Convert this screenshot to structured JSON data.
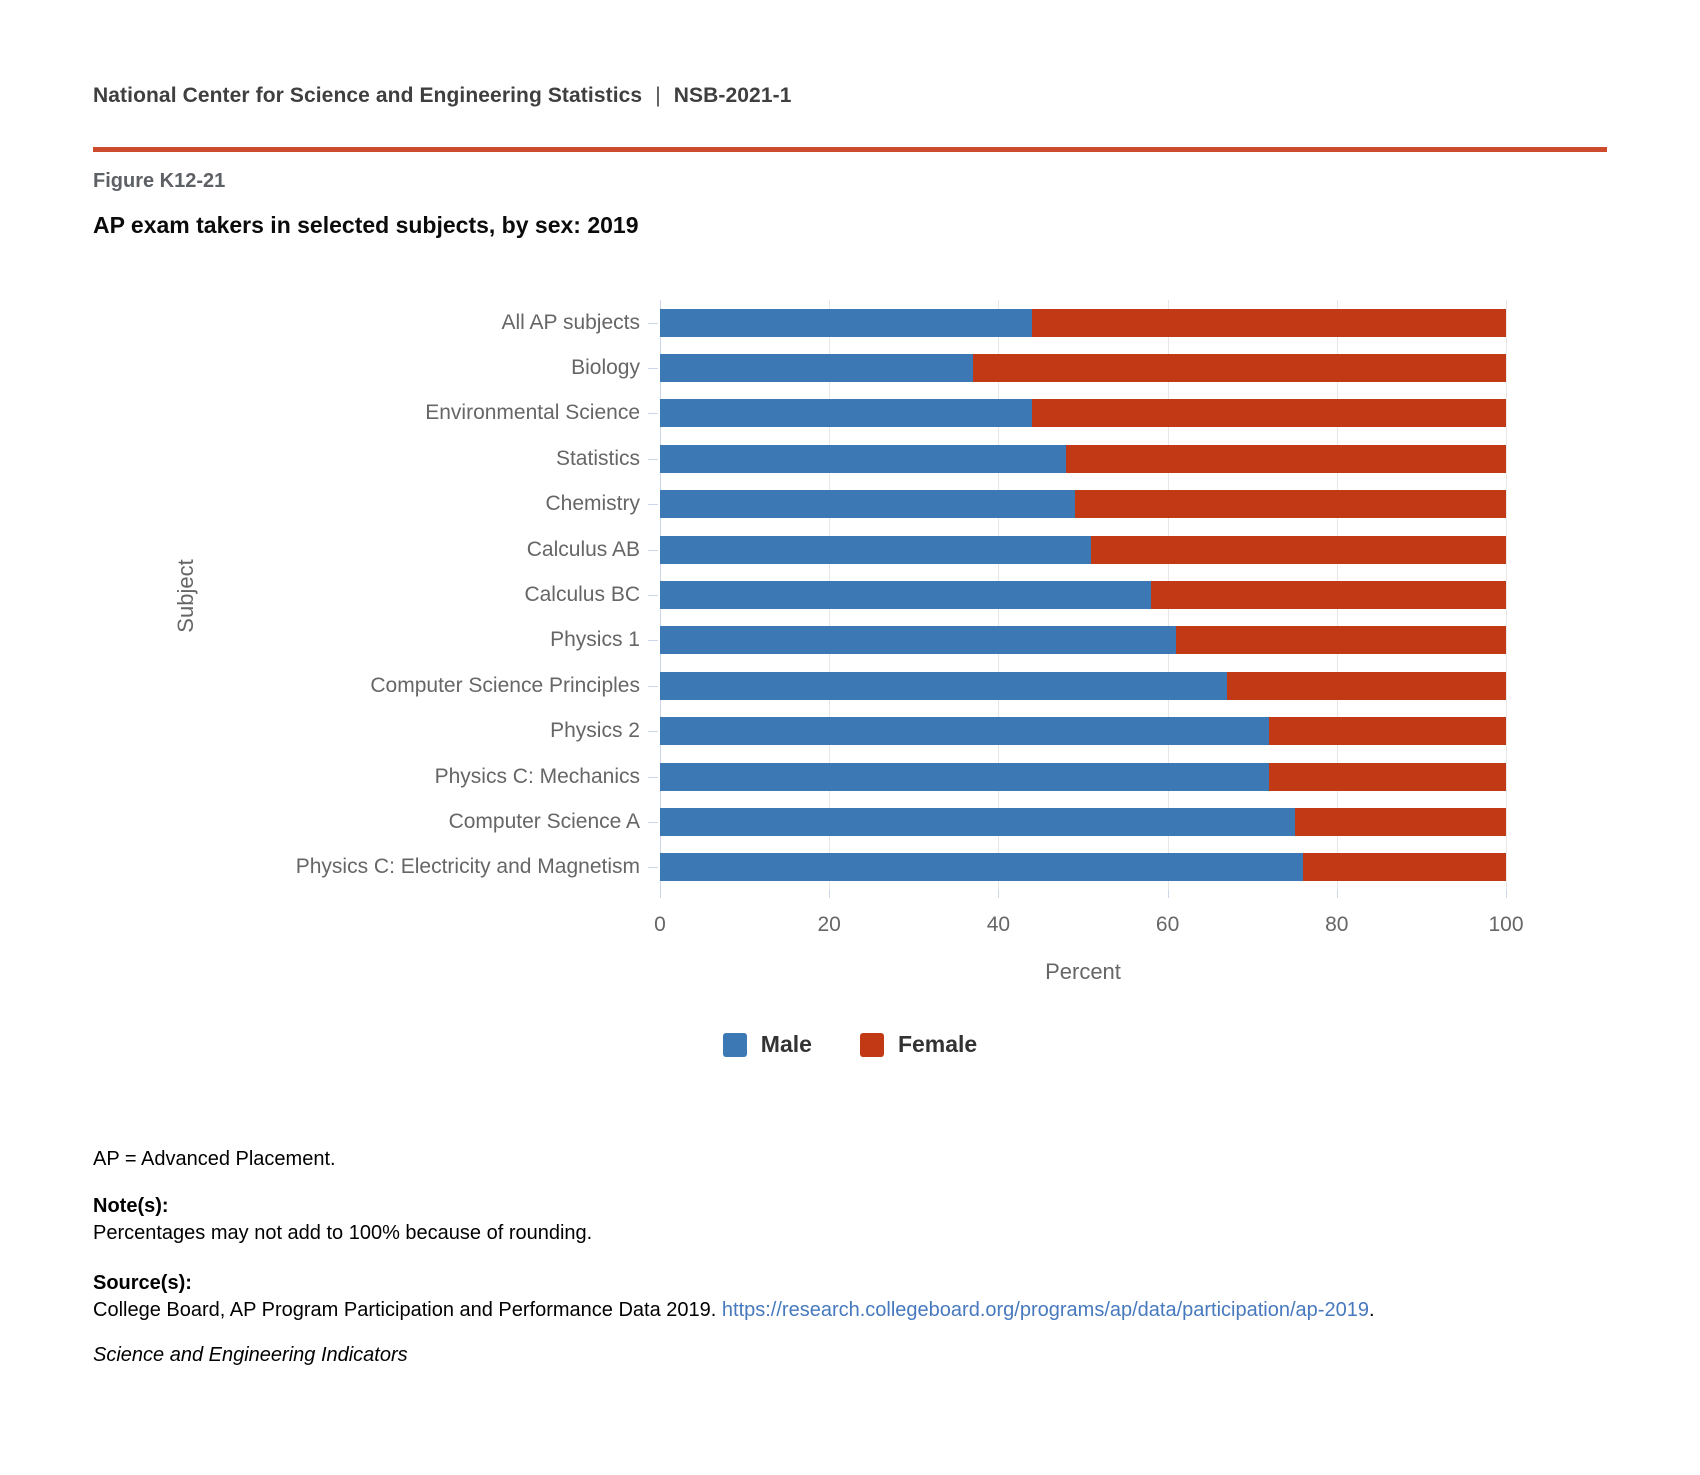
{
  "header": {
    "org": "National Center for Science and Engineering Statistics",
    "separator": "|",
    "report_id": "NSB-2021-1"
  },
  "figure": {
    "label": "Figure K12-21",
    "title": "AP exam takers in selected subjects, by sex: 2019"
  },
  "chart_data": {
    "type": "bar",
    "orientation": "horizontal",
    "stacked": true,
    "title": "AP exam takers in selected subjects, by sex: 2019",
    "categories": [
      "All AP subjects",
      "Biology",
      "Environmental Science",
      "Statistics",
      "Chemistry",
      "Calculus AB",
      "Calculus BC",
      "Physics 1",
      "Computer Science Principles",
      "Physics 2",
      "Physics C: Mechanics",
      "Computer Science A",
      "Physics C: Electricity and Magnetism"
    ],
    "series": [
      {
        "name": "Male",
        "color": "#3c78b4",
        "values": [
          44,
          37,
          44,
          48,
          49,
          51,
          58,
          61,
          67,
          72,
          72,
          75,
          76
        ]
      },
      {
        "name": "Female",
        "color": "#c13a15",
        "values": [
          56,
          63,
          56,
          52,
          51,
          49,
          42,
          39,
          33,
          28,
          28,
          25,
          24
        ]
      }
    ],
    "xlabel": "Percent",
    "ylabel": "Subject",
    "xlim": [
      0,
      100
    ],
    "xticks": [
      0,
      20,
      40,
      60,
      80,
      100
    ],
    "grid": true,
    "legend_position": "bottom",
    "axis_color": "#ccd6eb",
    "grid_color": "#e7e7e7",
    "tick_label_color": "#666666",
    "legend_text_color": "#333333"
  },
  "footnotes": {
    "abbreviation": "AP = Advanced Placement.",
    "notes_label": "Note(s):",
    "notes_text": "Percentages may not add to 100% because of rounding.",
    "sources_label": "Source(s):",
    "sources_text": "College Board, AP Program Participation and Performance Data 2019. ",
    "sources_link": "https://research.collegeboard.org/programs/ap/data/participation/ap-2019",
    "sources_suffix": ".",
    "publication": "Science and Engineering Indicators"
  },
  "colors": {
    "header_rule": "#cd4b2d",
    "link": "#4779be"
  }
}
